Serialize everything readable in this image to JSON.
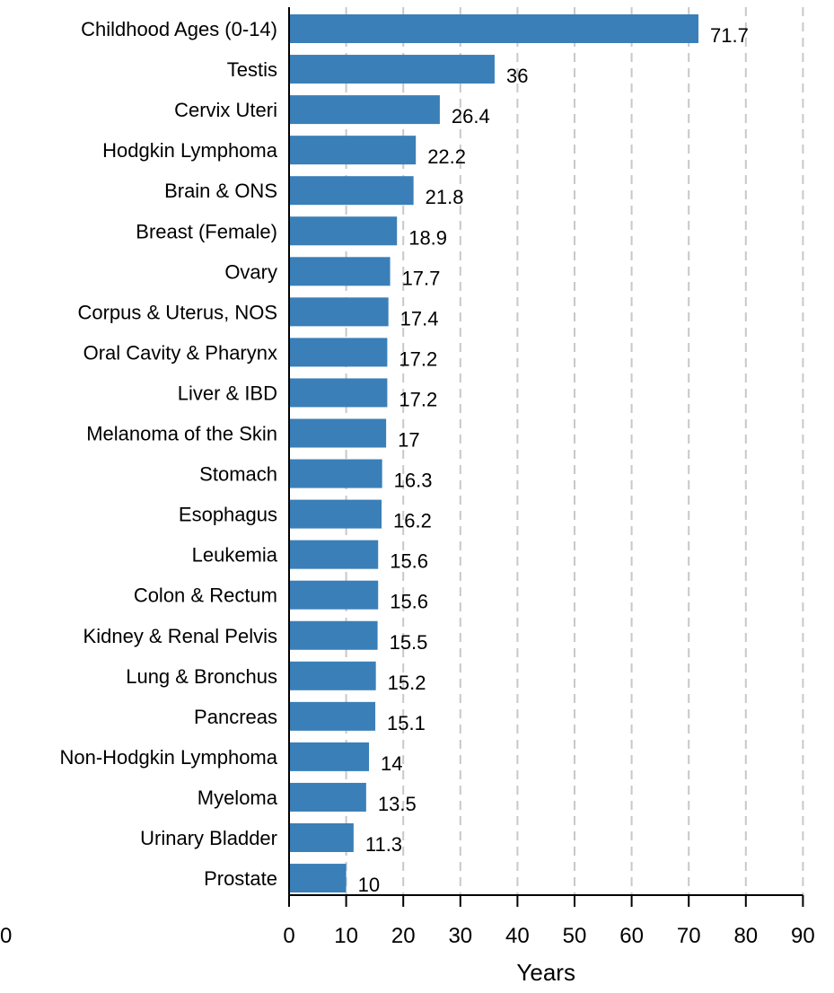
{
  "chart_data": {
    "type": "bar",
    "orientation": "horizontal",
    "categories": [
      "Childhood Ages (0-14)",
      "Testis",
      "Cervix Uteri",
      "Hodgkin Lymphoma",
      "Brain & ONS",
      "Breast (Female)",
      "Ovary",
      "Corpus & Uterus, NOS",
      "Oral Cavity & Pharynx",
      "Liver & IBD",
      "Melanoma of the Skin",
      "Stomach",
      "Esophagus",
      "Leukemia",
      "Colon & Rectum",
      "Kidney & Renal Pelvis",
      "Lung & Bronchus",
      "Pancreas",
      "Non-Hodgkin Lymphoma",
      "Myeloma",
      "Urinary Bladder",
      "Prostate"
    ],
    "values": [
      71.7,
      36,
      26.4,
      22.2,
      21.8,
      18.9,
      17.7,
      17.4,
      17.2,
      17.2,
      17,
      16.3,
      16.2,
      15.6,
      15.6,
      15.5,
      15.2,
      15.1,
      14,
      13.5,
      11.3,
      10
    ],
    "value_labels": [
      "71.7",
      "36",
      "26.4",
      "22.2",
      "21.8",
      "18.9",
      "17.7",
      "17.4",
      "17.2",
      "17.2",
      "17",
      "16.3",
      "16.2",
      "15.6",
      "15.6",
      "15.5",
      "15.2",
      "15.1",
      "14",
      "13.5",
      "11.3",
      "10"
    ],
    "xlabel": "Years",
    "ylabel": "",
    "xlim": [
      0,
      90
    ],
    "x_ticks": [
      0,
      10,
      20,
      30,
      40,
      50,
      60,
      70,
      80,
      90
    ],
    "x_tick_labels": [
      "0",
      "10",
      "20",
      "30",
      "40",
      "50",
      "60",
      "70",
      "80",
      "90"
    ],
    "stray_left_label": "0",
    "grid": "vertical dashed",
    "bar_color": "#3a7fb8",
    "grid_color": "#c8c8c8"
  }
}
